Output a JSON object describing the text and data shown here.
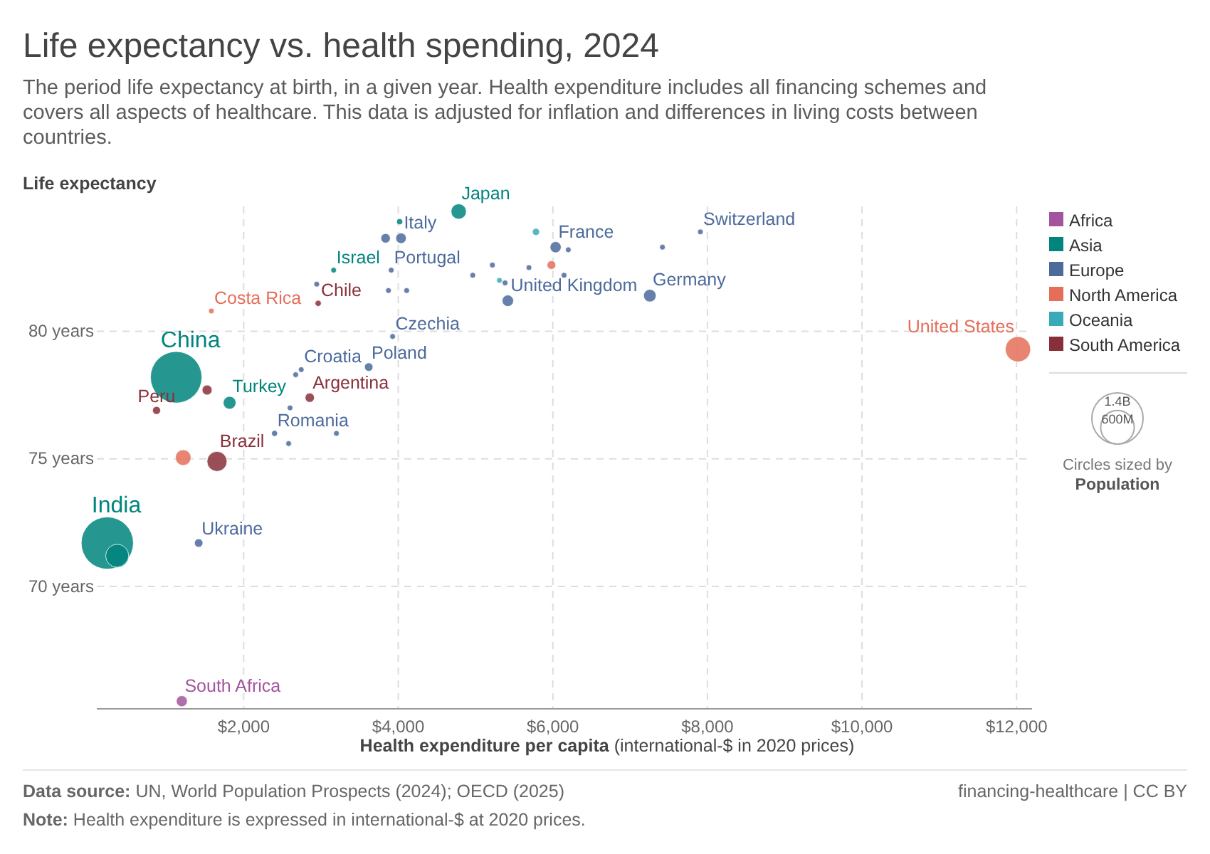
{
  "chart_data": {
    "type": "bubble",
    "title": "Life expectancy vs. health spending, 2024",
    "subtitle": "The period life expectancy at birth, in a given year. Health expenditure includes all financing schemes and covers all aspects of healthcare. This data is adjusted for inflation and differences in living costs between countries.",
    "xlabel": "Health expenditure per capita (international-$ in 2020 prices)",
    "ylabel": "Life expectancy",
    "legend_title": "Circles sized by Population",
    "xlim": [
      100,
      12200
    ],
    "ylim": [
      65.2,
      84.9
    ],
    "xticks": [
      {
        "value": 2000,
        "label": "$2,000"
      },
      {
        "value": 4000,
        "label": "$4,000"
      },
      {
        "value": 6000,
        "label": "$6,000"
      },
      {
        "value": 8000,
        "label": "$8,000"
      },
      {
        "value": 10000,
        "label": "$10,000"
      },
      {
        "value": 12000,
        "label": "$12,000"
      }
    ],
    "yticks": [
      {
        "value": 70,
        "label": "70 years"
      },
      {
        "value": 75,
        "label": "75 years"
      },
      {
        "value": 80,
        "label": "80 years"
      }
    ],
    "grid": true,
    "legend": "right",
    "size_legend": [
      {
        "value": 1400,
        "label": "1.4B"
      },
      {
        "value": 600,
        "label": "600M"
      }
    ],
    "series": [
      {
        "name": "Africa",
        "color": "#a2559c",
        "x": [
          1200
        ],
        "values": [
          65.5
        ],
        "sizes": [
          64
        ]
      },
      {
        "name": "Asia",
        "color": "#00847e",
        "x": [
          1127,
          236,
          364,
          4782,
          3164,
          1818,
          4018
        ],
        "values": [
          78.2,
          71.7,
          71.2,
          84.7,
          82.4,
          77.2,
          84.3
        ],
        "sizes": [
          1410,
          1450,
          283,
          124,
          17,
          87,
          20
        ]
      },
      {
        "name": "Europe",
        "color": "#4c6a9c",
        "x": [
          4036,
          3836,
          3909,
          4964,
          5218,
          5691,
          6145,
          6036,
          6200,
          7418,
          7909,
          7255,
          5418,
          5382,
          3873,
          4109,
          2945,
          3927,
          3618,
          2745,
          2673,
          2400,
          2582,
          3200,
          2600,
          1418
        ],
        "values": [
          83.65,
          83.65,
          82.4,
          82.2,
          82.6,
          82.5,
          82.2,
          83.3,
          83.2,
          83.3,
          83.9,
          81.4,
          81.2,
          81.9,
          81.6,
          81.6,
          81.85,
          79.8,
          78.6,
          78.5,
          78.3,
          76.0,
          75.6,
          76.0,
          77.0,
          71.7
        ],
        "sizes": [
          59,
          48,
          17,
          17,
          17,
          17,
          17,
          66,
          17,
          17,
          17,
          84,
          69,
          17,
          17,
          17,
          17,
          17,
          38,
          17,
          17,
          19,
          17,
          17,
          17,
          38
        ]
      },
      {
        "name": "North America",
        "color": "#e56e5a",
        "x": [
          12018,
          1218,
          1582,
          5982
        ],
        "values": [
          79.3,
          75.05,
          80.8,
          82.6
        ],
        "sizes": [
          340,
          130,
          17,
          40
        ]
      },
      {
        "name": "Oceania",
        "color": "#38aaba",
        "x": [
          5782,
          5309
        ],
        "values": [
          83.9,
          82.0
        ],
        "sizes": [
          27,
          17
        ]
      },
      {
        "name": "South America",
        "color": "#883039",
        "x": [
          1655,
          873,
          1527,
          2855,
          2964
        ],
        "values": [
          74.9,
          76.9,
          77.7,
          77.4,
          81.1
        ],
        "sizes": [
          212,
          34,
          53,
          46,
          20
        ]
      }
    ],
    "annotations": [
      {
        "text": "South Africa",
        "x": 1200,
        "y": 65.5
      },
      {
        "text": "China",
        "x": 1127,
        "y": 78.2
      },
      {
        "text": "India",
        "x": 236,
        "y": 71.7
      },
      {
        "text": "Japan",
        "x": 4782,
        "y": 84.7
      },
      {
        "text": "Israel",
        "x": 3164,
        "y": 82.4
      },
      {
        "text": "Turkey",
        "x": 1818,
        "y": 77.2
      },
      {
        "text": "Italy",
        "x": 4036,
        "y": 83.65
      },
      {
        "text": "Portugal",
        "x": 3909,
        "y": 82.4
      },
      {
        "text": "France",
        "x": 6036,
        "y": 83.3
      },
      {
        "text": "Switzerland",
        "x": 7909,
        "y": 83.9
      },
      {
        "text": "Germany",
        "x": 7255,
        "y": 81.4
      },
      {
        "text": "United Kingdom",
        "x": 5418,
        "y": 81.2
      },
      {
        "text": "Czechia",
        "x": 3927,
        "y": 79.8
      },
      {
        "text": "Poland",
        "x": 3618,
        "y": 78.6
      },
      {
        "text": "Croatia",
        "x": 2745,
        "y": 78.5
      },
      {
        "text": "Romania",
        "x": 2400,
        "y": 76.0
      },
      {
        "text": "Ukraine",
        "x": 1418,
        "y": 71.7
      },
      {
        "text": "United States",
        "x": 12018,
        "y": 79.3
      },
      {
        "text": "Costa Rica",
        "x": 1582,
        "y": 80.8
      },
      {
        "text": "Brazil",
        "x": 1655,
        "y": 74.9
      },
      {
        "text": "Peru",
        "x": 873,
        "y": 76.9
      },
      {
        "text": "Argentina",
        "x": 2855,
        "y": 77.4
      },
      {
        "text": "Chile",
        "x": 2964,
        "y": 81.1
      },
      "Data source: UN, World Population Prospects (2024); OECD (2025)",
      "Note: Health expenditure is expressed in international-$ at 2020 prices.",
      "financing-healthcare | CC BY"
    ]
  }
}
